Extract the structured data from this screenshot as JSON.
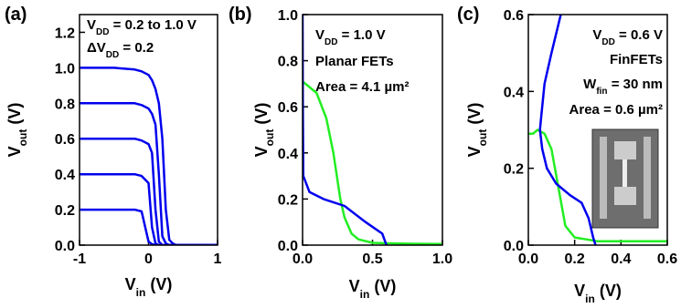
{
  "chart_data": [
    {
      "type": "line",
      "panel_label": "(a)",
      "xlabel": [
        "V",
        "in",
        " (V)"
      ],
      "ylabel": [
        "V",
        "out",
        " (V)"
      ],
      "annotations": [
        [
          "V",
          "DD",
          " = 0.2 to 1.0 V"
        ],
        [
          "ΔV",
          "DD",
          " = 0.2"
        ]
      ],
      "xlim": [
        -1,
        1
      ],
      "xticks": [
        -1,
        0,
        1
      ],
      "ylim": [
        0,
        1.3
      ],
      "yticks": [
        {
          "value": 0,
          "label": "0.0"
        },
        0.2,
        0.4,
        0.6,
        0.8,
        {
          "value": 1,
          "label": "1.0"
        },
        1.2
      ],
      "x": [
        -1,
        -0.5,
        -0.2,
        -0.1,
        0,
        0.05,
        0.1,
        0.15,
        0.2,
        0.25,
        0.3,
        0.35,
        0.4,
        0.5,
        1
      ],
      "series": [
        {
          "color": "#0000ee",
          "values": [
            0.2,
            0.2,
            0.2,
            0.19,
            0.02,
            0.005,
            0,
            0,
            0,
            0,
            0,
            0,
            0,
            0,
            0
          ]
        },
        {
          "color": "#0000ee",
          "values": [
            0.4,
            0.4,
            0.4,
            0.39,
            0.35,
            0.1,
            0.01,
            0,
            0,
            0,
            0,
            0,
            0,
            0,
            0
          ]
        },
        {
          "color": "#0000ee",
          "values": [
            0.6,
            0.6,
            0.6,
            0.59,
            0.57,
            0.52,
            0.2,
            0.02,
            0,
            0,
            0,
            0,
            0,
            0,
            0
          ]
        },
        {
          "color": "#0000ee",
          "values": [
            0.8,
            0.8,
            0.8,
            0.79,
            0.77,
            0.74,
            0.68,
            0.4,
            0.05,
            0.01,
            0,
            0,
            0,
            0,
            0
          ]
        },
        {
          "color": "#0000ee",
          "values": [
            1,
            1,
            0.99,
            0.98,
            0.96,
            0.93,
            0.88,
            0.8,
            0.6,
            0.2,
            0.03,
            0.01,
            0,
            0,
            0
          ]
        }
      ]
    },
    {
      "type": "line",
      "panel_label": "(b)",
      "xlabel": [
        "V",
        "in",
        " (V)"
      ],
      "ylabel": [
        "V",
        "out",
        " (V)"
      ],
      "annotations": [
        [
          "V",
          "DD",
          " = 1.0 V"
        ],
        [
          "Planar FETs"
        ],
        [
          "Area = 4.1 µm²"
        ]
      ],
      "xlim": [
        0,
        1
      ],
      "xticks": [
        {
          "value": 0,
          "label": "0.0"
        },
        0.5,
        {
          "value": 1,
          "label": "1.0"
        }
      ],
      "ylim": [
        0,
        1
      ],
      "yticks": [
        {
          "value": 0,
          "label": "0.0"
        },
        0.2,
        0.4,
        0.6,
        0.8,
        {
          "value": 1,
          "label": "1.0"
        }
      ],
      "series": [
        {
          "color": "#22ee22",
          "x": [
            0,
            0.02,
            0.1,
            0.17,
            0.22,
            0.27,
            0.3,
            0.35,
            0.4,
            0.5,
            0.6,
            0.8,
            1
          ],
          "values": [
            0.71,
            0.7,
            0.66,
            0.55,
            0.4,
            0.2,
            0.12,
            0.05,
            0.025,
            0.01,
            0.008,
            0.006,
            0.005
          ]
        },
        {
          "color": "#0000ee",
          "x": [
            0,
            0.002,
            0.005,
            0.05,
            0.15,
            0.3,
            0.45,
            0.57,
            0.6
          ],
          "values": [
            1,
            0.6,
            0.3,
            0.23,
            0.2,
            0.17,
            0.1,
            0.05,
            0
          ]
        }
      ]
    },
    {
      "type": "line",
      "panel_label": "(c)",
      "xlabel": [
        "V",
        "in",
        " (V)"
      ],
      "ylabel": [
        "V",
        "out",
        " (V)"
      ],
      "annotations": [
        [
          "V",
          "DD",
          " = 0.6 V"
        ],
        [
          "FinFETs"
        ],
        [
          "W",
          "fin",
          " = 30 nm"
        ],
        [
          "Area = 0.6 µm²"
        ]
      ],
      "xlim": [
        0,
        0.6
      ],
      "xticks": [
        {
          "value": 0,
          "label": "0.0"
        },
        0.2,
        0.4,
        0.6
      ],
      "ylim": [
        0,
        0.6
      ],
      "yticks": [
        {
          "value": 0,
          "label": "0.0"
        },
        0.2,
        0.4,
        0.6
      ],
      "series": [
        {
          "color": "#22ee22",
          "x": [
            0,
            0.02,
            0.04,
            0.07,
            0.1,
            0.13,
            0.16,
            0.2,
            0.3,
            0.6
          ],
          "values": [
            0.29,
            0.29,
            0.3,
            0.29,
            0.25,
            0.15,
            0.05,
            0.02,
            0.01,
            0.01
          ]
        },
        {
          "color": "#0000ee",
          "x": [
            0.14,
            0.1,
            0.07,
            0.055,
            0.05,
            0.06,
            0.08,
            0.12,
            0.18,
            0.23,
            0.26,
            0.28,
            0.29
          ],
          "values": [
            0.6,
            0.5,
            0.42,
            0.33,
            0.3,
            0.25,
            0.2,
            0.16,
            0.13,
            0.11,
            0.07,
            0.02,
            0
          ]
        }
      ]
    }
  ]
}
